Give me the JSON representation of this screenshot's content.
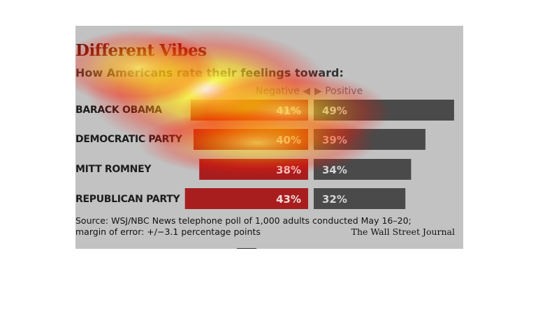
{
  "header": {
    "title": "Different Vibes",
    "subtitle": "How Americans rate their feelings toward:"
  },
  "legend": {
    "negative_label": "Negative ◀",
    "positive_label": "▶ Positive"
  },
  "colors": {
    "negative_bar": "#a81e1e",
    "positive_bar": "#4a4a4a",
    "background": "#c2c2c2",
    "title": "#6b1a10"
  },
  "chart_data": {
    "type": "bar",
    "title": "Different Vibes",
    "subtitle": "How Americans rate their feelings toward:",
    "categories": [
      "BARACK OBAMA",
      "DEMOCRATIC PARTY",
      "MITT ROMNEY",
      "REPUBLICAN PARTY"
    ],
    "series": [
      {
        "name": "Negative",
        "values": [
          41,
          40,
          38,
          43
        ],
        "labels": [
          "41%",
          "40%",
          "38%",
          "43%"
        ]
      },
      {
        "name": "Positive",
        "values": [
          49,
          39,
          34,
          32
        ],
        "labels": [
          "49%",
          "39%",
          "34%",
          "32%"
        ]
      }
    ],
    "unit": "%",
    "grid": false
  },
  "footer": {
    "source_line1": "Source: WSJ/NBC News telephone poll of 1,000 adults conducted May 16–20;",
    "source_line2": "margin of error: +/−3.1 percentage points",
    "credit": "The Wall Street Journal"
  }
}
